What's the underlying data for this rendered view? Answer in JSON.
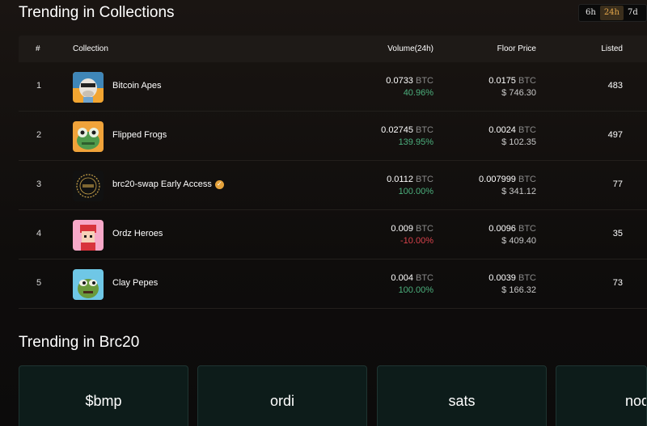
{
  "sections": {
    "collections_title": "Trending in Collections",
    "brc20_title": "Trending in Brc20"
  },
  "timeframes": [
    {
      "label": "6h",
      "active": false
    },
    {
      "label": "24h",
      "active": true
    },
    {
      "label": "7d",
      "active": false
    }
  ],
  "table": {
    "headers": {
      "rank": "#",
      "collection": "Collection",
      "volume": "Volume(24h)",
      "floor": "Floor Price",
      "listed": "Listed"
    },
    "rows": [
      {
        "rank": "1",
        "name": "Bitcoin Apes",
        "verified": false,
        "volume": "0.0733",
        "volume_unit": "BTC",
        "change": "40.96%",
        "change_dir": "up",
        "floor": "0.0175",
        "floor_unit": "BTC",
        "floor_usd": "$ 746.30",
        "listed": "483",
        "icon": "bitcoin-ape-avatar-icon"
      },
      {
        "rank": "2",
        "name": "Flipped Frogs",
        "verified": false,
        "volume": "0.02745",
        "volume_unit": "BTC",
        "change": "139.95%",
        "change_dir": "up",
        "floor": "0.0024",
        "floor_unit": "BTC",
        "floor_usd": "$ 102.35",
        "listed": "497",
        "icon": "flipped-frog-avatar-icon"
      },
      {
        "rank": "3",
        "name": "brc20-swap Early Access",
        "verified": true,
        "volume": "0.0112",
        "volume_unit": "BTC",
        "change": "100.00%",
        "change_dir": "up",
        "floor": "0.007999",
        "floor_unit": "BTC",
        "floor_usd": "$ 341.12",
        "listed": "77",
        "icon": "brc20-swap-badge-icon"
      },
      {
        "rank": "4",
        "name": "Ordz Heroes",
        "verified": false,
        "volume": "0.009",
        "volume_unit": "BTC",
        "change": "-10.00%",
        "change_dir": "down",
        "floor": "0.0096",
        "floor_unit": "BTC",
        "floor_usd": "$ 409.40",
        "listed": "35",
        "icon": "ordz-hero-avatar-icon"
      },
      {
        "rank": "5",
        "name": "Clay Pepes",
        "verified": false,
        "volume": "0.004",
        "volume_unit": "BTC",
        "change": "100.00%",
        "change_dir": "up",
        "floor": "0.0039",
        "floor_unit": "BTC",
        "floor_usd": "$ 166.32",
        "listed": "73",
        "icon": "clay-pepe-avatar-icon"
      }
    ]
  },
  "brc20_cards": [
    {
      "ticker": "$bmp"
    },
    {
      "ticker": "ordi"
    },
    {
      "ticker": "sats"
    },
    {
      "ticker": "nod"
    }
  ],
  "colors": {
    "accent": "#e3a64a",
    "positive": "#4caf7d",
    "negative": "#d8424b",
    "card_bg": "#0d1c1a"
  }
}
